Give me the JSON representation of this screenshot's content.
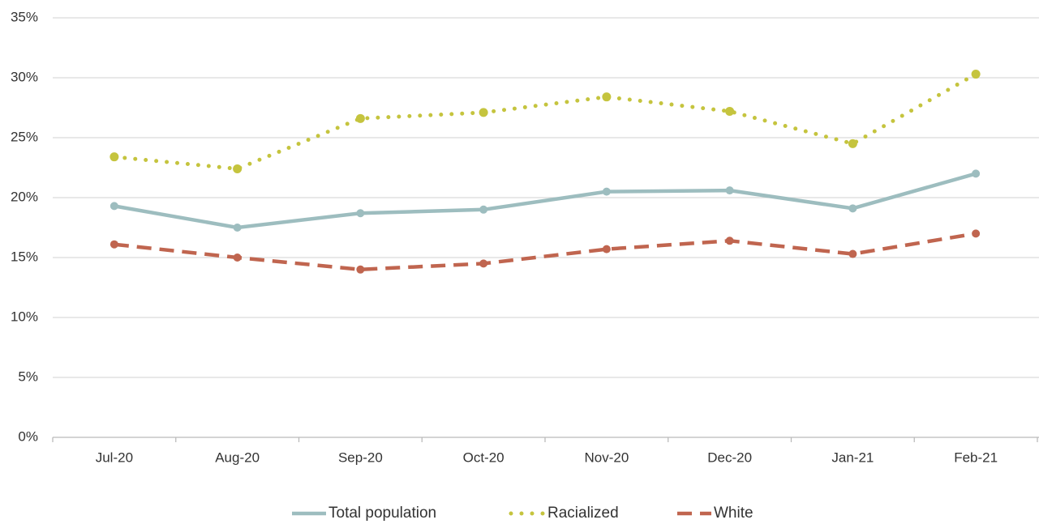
{
  "chart_data": {
    "type": "line",
    "categories": [
      "Jul-20",
      "Aug-20",
      "Sep-20",
      "Oct-20",
      "Nov-20",
      "Dec-20",
      "Jan-21",
      "Feb-21"
    ],
    "series": [
      {
        "name": "Total population",
        "color": "#9dbdbf",
        "line_style": "solid",
        "values": [
          19.3,
          17.5,
          18.7,
          19.0,
          20.5,
          20.6,
          19.1,
          22.0
        ]
      },
      {
        "name": "Racialized",
        "color": "#c5c43e",
        "line_style": "dotted",
        "values": [
          23.4,
          22.4,
          26.6,
          27.1,
          28.4,
          27.2,
          24.5,
          30.3
        ]
      },
      {
        "name": "White",
        "color": "#c0654f",
        "line_style": "dashed",
        "values": [
          16.1,
          15.0,
          14.0,
          14.5,
          15.7,
          16.4,
          15.3,
          17.0
        ]
      }
    ],
    "ylim": [
      0,
      35
    ],
    "yticks": [
      {
        "value": 0,
        "label": "0%"
      },
      {
        "value": 5,
        "label": "5%"
      },
      {
        "value": 10,
        "label": "10%"
      },
      {
        "value": 15,
        "label": "15%"
      },
      {
        "value": 20,
        "label": "20%"
      },
      {
        "value": 25,
        "label": "25%"
      },
      {
        "value": 30,
        "label": "30%"
      },
      {
        "value": 35,
        "label": "35%"
      }
    ],
    "grid": true,
    "legend": "bottom"
  }
}
